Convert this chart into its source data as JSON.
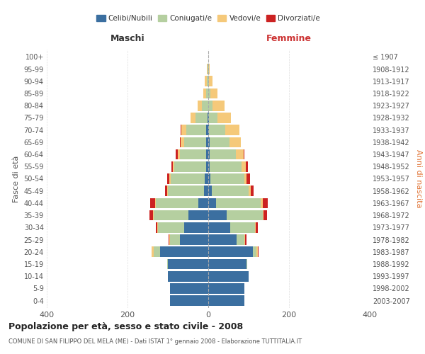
{
  "age_groups": [
    "0-4",
    "5-9",
    "10-14",
    "15-19",
    "20-24",
    "25-29",
    "30-34",
    "35-39",
    "40-44",
    "45-49",
    "50-54",
    "55-59",
    "60-64",
    "65-69",
    "70-74",
    "75-79",
    "80-84",
    "85-89",
    "90-94",
    "95-99",
    "100+"
  ],
  "birth_years": [
    "2003-2007",
    "1998-2002",
    "1993-1997",
    "1988-1992",
    "1983-1987",
    "1978-1982",
    "1973-1977",
    "1968-1972",
    "1963-1967",
    "1958-1962",
    "1953-1957",
    "1948-1952",
    "1943-1947",
    "1938-1942",
    "1933-1937",
    "1928-1932",
    "1923-1927",
    "1918-1922",
    "1913-1917",
    "1908-1912",
    "≤ 1907"
  ],
  "maschi": {
    "celibi": [
      95,
      95,
      100,
      100,
      120,
      70,
      60,
      50,
      25,
      10,
      8,
      5,
      5,
      5,
      5,
      2,
      0,
      0,
      0,
      0,
      0
    ],
    "coniugati": [
      0,
      0,
      0,
      2,
      15,
      25,
      65,
      85,
      105,
      90,
      85,
      80,
      65,
      55,
      50,
      30,
      15,
      5,
      3,
      1,
      0
    ],
    "vedovi": [
      0,
      0,
      0,
      0,
      5,
      2,
      2,
      2,
      2,
      2,
      3,
      2,
      5,
      8,
      12,
      12,
      12,
      8,
      5,
      2,
      0
    ],
    "divorziati": [
      0,
      0,
      0,
      0,
      0,
      2,
      3,
      8,
      12,
      5,
      5,
      5,
      5,
      2,
      2,
      0,
      0,
      0,
      0,
      0,
      0
    ]
  },
  "femmine": {
    "nubili": [
      90,
      90,
      100,
      95,
      110,
      70,
      55,
      45,
      20,
      8,
      5,
      3,
      3,
      3,
      2,
      2,
      0,
      0,
      0,
      0,
      0
    ],
    "coniugate": [
      0,
      0,
      0,
      2,
      10,
      20,
      60,
      90,
      110,
      92,
      85,
      80,
      65,
      50,
      40,
      20,
      10,
      5,
      2,
      1,
      0
    ],
    "vedove": [
      0,
      0,
      0,
      0,
      2,
      2,
      2,
      2,
      5,
      5,
      5,
      10,
      20,
      28,
      35,
      35,
      30,
      18,
      8,
      2,
      0
    ],
    "divorziate": [
      0,
      0,
      0,
      0,
      2,
      2,
      5,
      8,
      12,
      8,
      8,
      5,
      2,
      0,
      0,
      0,
      0,
      0,
      0,
      0,
      0
    ]
  },
  "colors": {
    "celibi_nubili": "#3b6fa0",
    "coniugati_e": "#b5cfa0",
    "vedovi_e": "#f5c97a",
    "divorziati_e": "#cc2222"
  },
  "xlim": 400,
  "title": "Popolazione per età, sesso e stato civile - 2008",
  "subtitle": "COMUNE DI SAN FILIPPO DEL MELA (ME) - Dati ISTAT 1° gennaio 2008 - Elaborazione TUTTITALIA.IT",
  "ylabel_left": "Fasce di età",
  "ylabel_right": "Anni di nascita",
  "xlabel_maschi": "Maschi",
  "xlabel_femmine": "Femmine"
}
